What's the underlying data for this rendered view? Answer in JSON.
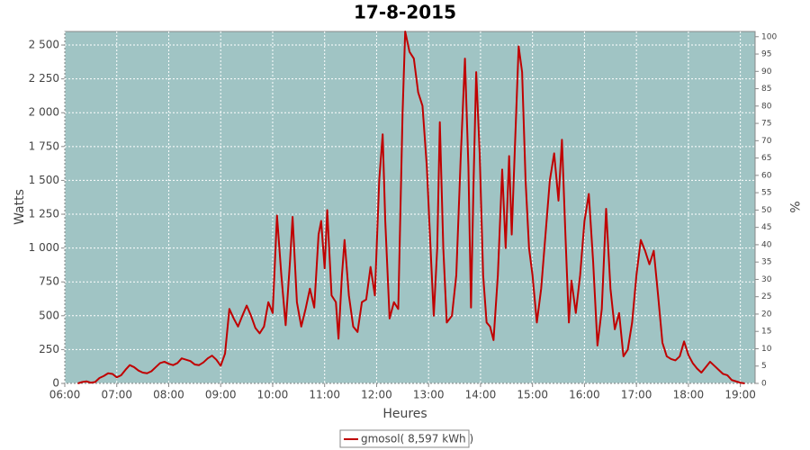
{
  "chart_data": {
    "type": "line",
    "title": "17-8-2015",
    "x_label": "Heures",
    "y_label": "Watts",
    "y2_label": "%",
    "xlim": [
      "06:00",
      "19:17"
    ],
    "xticks": [
      "06:00",
      "07:00",
      "08:00",
      "09:00",
      "10:00",
      "11:00",
      "12:00",
      "13:00",
      "14:00",
      "15:00",
      "16:00",
      "17:00",
      "18:00",
      "19:00"
    ],
    "ylim": [
      0,
      2600
    ],
    "yticks": [
      0,
      250,
      500,
      750,
      {
        "value": 1000,
        "label": "1 000"
      },
      {
        "value": 1250,
        "label": "1 250"
      },
      {
        "value": 1500,
        "label": "1 500"
      },
      {
        "value": 1750,
        "label": "1 750"
      },
      {
        "value": 2000,
        "label": "2 000"
      },
      {
        "value": 2250,
        "label": "2 250"
      },
      {
        "value": 2500,
        "label": "2 500"
      }
    ],
    "y2lim": [
      0,
      101.5
    ],
    "y2ticks": [
      0,
      5,
      10,
      15,
      20,
      25,
      30,
      35,
      40,
      45,
      50,
      55,
      60,
      65,
      70,
      75,
      80,
      85,
      90,
      95,
      100
    ],
    "grid": true,
    "background": "#a0c4c4",
    "x": [
      "06:15",
      "06:20",
      "06:25",
      "06:30",
      "06:35",
      "06:40",
      "06:45",
      "06:50",
      "06:55",
      "07:00",
      "07:05",
      "07:10",
      "07:15",
      "07:20",
      "07:25",
      "07:30",
      "07:35",
      "07:40",
      "07:45",
      "07:50",
      "07:55",
      "08:00",
      "08:05",
      "08:10",
      "08:15",
      "08:20",
      "08:25",
      "08:30",
      "08:35",
      "08:40",
      "08:45",
      "08:50",
      "08:55",
      "09:00",
      "09:05",
      "09:10",
      "09:15",
      "09:20",
      "09:25",
      "09:30",
      "09:35",
      "09:40",
      "09:45",
      "09:50",
      "09:55",
      "10:00",
      "10:05",
      "10:10",
      "10:15",
      "10:20",
      "10:23",
      "10:28",
      "10:33",
      "10:38",
      "10:43",
      "10:48",
      "10:53",
      "10:56",
      "11:00",
      "11:03",
      "11:08",
      "11:13",
      "11:16",
      "11:20",
      "11:23",
      "11:28",
      "11:33",
      "11:38",
      "11:43",
      "11:48",
      "11:53",
      "11:58",
      "12:03",
      "12:07",
      "12:10",
      "12:15",
      "12:20",
      "12:25",
      "12:30",
      "12:33",
      "12:38",
      "12:43",
      "12:48",
      "12:53",
      "12:58",
      "13:03",
      "13:06",
      "13:10",
      "13:13",
      "13:17",
      "13:21",
      "13:27",
      "13:32",
      "13:37",
      "13:42",
      "13:46",
      "13:49",
      "13:52",
      "13:55",
      "13:59",
      "14:03",
      "14:07",
      "14:11",
      "14:15",
      "14:20",
      "14:25",
      "14:29",
      "14:33",
      "14:36",
      "14:40",
      "14:44",
      "14:48",
      "14:52",
      "14:56",
      "15:00",
      "15:05",
      "15:10",
      "15:15",
      "15:20",
      "15:25",
      "15:30",
      "15:34",
      "15:38",
      "15:42",
      "15:45",
      "15:50",
      "15:55",
      "16:00",
      "16:05",
      "16:10",
      "16:15",
      "16:20",
      "16:25",
      "16:30",
      "16:35",
      "16:40",
      "16:45",
      "16:50",
      "16:55",
      "17:00",
      "17:05",
      "17:10",
      "17:15",
      "17:20",
      "17:25",
      "17:30",
      "17:35",
      "17:40",
      "17:45",
      "17:50",
      "17:55",
      "18:00",
      "18:05",
      "18:10",
      "18:15",
      "18:20",
      "18:25",
      "18:30",
      "18:35",
      "18:40",
      "18:45",
      "18:50",
      "18:55",
      "19:00",
      "19:05"
    ],
    "series": [
      {
        "name": "gmosol( 8,597 kWh )",
        "color": "#c00000",
        "values": [
          0,
          10,
          15,
          5,
          10,
          40,
          55,
          75,
          70,
          45,
          60,
          100,
          135,
          120,
          95,
          80,
          75,
          90,
          120,
          150,
          160,
          145,
          135,
          150,
          185,
          175,
          165,
          140,
          135,
          155,
          185,
          205,
          175,
          130,
          220,
          550,
          480,
          420,
          500,
          575,
          500,
          410,
          370,
          420,
          600,
          520,
          1240,
          800,
          430,
          900,
          1230,
          600,
          420,
          550,
          700,
          560,
          1100,
          1200,
          850,
          1280,
          650,
          600,
          330,
          800,
          1060,
          650,
          420,
          380,
          600,
          620,
          860,
          650,
          1500,
          1840,
          1200,
          480,
          600,
          550,
          2000,
          2600,
          2450,
          2400,
          2150,
          2050,
          1600,
          900,
          500,
          1000,
          1930,
          1000,
          450,
          500,
          800,
          1650,
          2400,
          1600,
          560,
          1500,
          2300,
          1700,
          800,
          450,
          420,
          320,
          800,
          1580,
          1000,
          1680,
          1100,
          1800,
          2490,
          2300,
          1500,
          1000,
          800,
          450,
          700,
          1100,
          1500,
          1700,
          1350,
          1800,
          1100,
          450,
          760,
          520,
          800,
          1200,
          1400,
          900,
          280,
          550,
          1290,
          700,
          400,
          520,
          200,
          250,
          450,
          800,
          1060,
          980,
          880,
          980,
          650,
          300,
          200,
          180,
          170,
          200,
          310,
          210,
          150,
          110,
          80,
          120,
          160,
          130,
          100,
          70,
          60,
          25,
          15,
          5,
          0
        ]
      }
    ]
  }
}
